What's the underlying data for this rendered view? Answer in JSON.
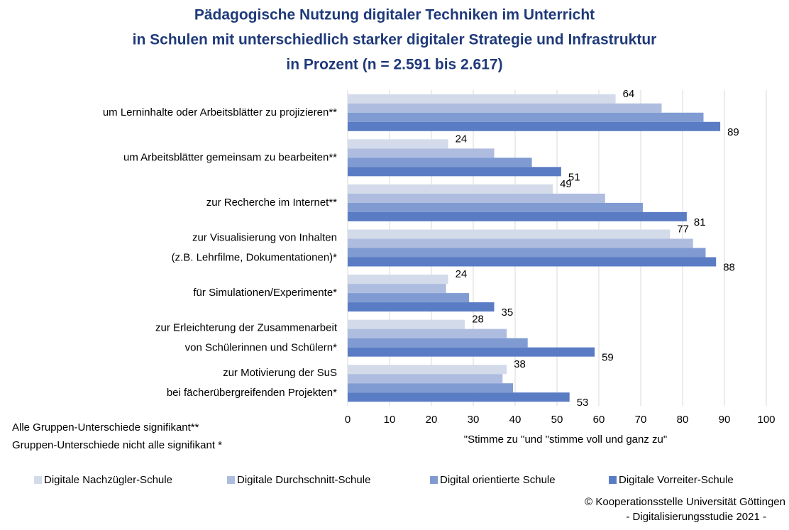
{
  "chart_data": {
    "type": "bar",
    "orientation": "horizontal",
    "title": [
      "Pädagogische Nutzung digitaler Techniken im Unterricht",
      "in Schulen mit unterschiedlich starker digitaler Strategie und Infrastruktur",
      "in Prozent (n =  2.591 bis 2.617)"
    ],
    "categories": [
      "um Lerninhalte oder Arbeitsblätter zu projizieren**",
      "um Arbeitsblätter gemeinsam zu bearbeiten**",
      "zur Recherche im Internet**",
      "zur Visualisierung von Inhalten\n(z.B. Lehrfilme, Dokumentationen)*",
      "für Simulationen/Experimente*",
      "zur Erleichterung der Zusammenarbeit\nvon Schülerinnen und Schülern*",
      "zur Motivierung der SuS\nbei fächerübergreifenden Projekten*"
    ],
    "series": [
      {
        "name": "Digitale Nachzügler-Schule",
        "color": "#d3dbeb",
        "data_labels": true,
        "values": [
          64,
          24,
          49,
          77,
          24,
          28,
          38
        ]
      },
      {
        "name": "Digitale Durchschnitt-Schule",
        "color": "#aebddf",
        "data_labels": false,
        "values": [
          75,
          35,
          61.5,
          82.5,
          23.5,
          38,
          37
        ]
      },
      {
        "name": "Digital orientierte Schule",
        "color": "#7f9bd2",
        "data_labels": false,
        "values": [
          85,
          44,
          70.5,
          85.5,
          29,
          43,
          39.5
        ]
      },
      {
        "name": "Digitale Vorreiter-Schule",
        "color": "#5a7cc4",
        "data_labels": true,
        "values": [
          89,
          51,
          81,
          88,
          35,
          59,
          53
        ]
      }
    ],
    "xlim": [
      0,
      100
    ],
    "xticks": [
      0,
      10,
      20,
      30,
      40,
      50,
      60,
      70,
      80,
      90,
      100
    ],
    "grid": true,
    "xlabel": "\"Stimme zu \"und \"stimme voll und ganz zu\"",
    "notes": [
      "Alle Gruppen-Unterschiede signifikant**",
      "Gruppen-Unterschiede nicht alle signifikant *"
    ],
    "legend": "bottom",
    "source": [
      "© Kooperationsstelle Universität Göttingen",
      "- Digitalisierungsstudie 2021 -"
    ]
  }
}
